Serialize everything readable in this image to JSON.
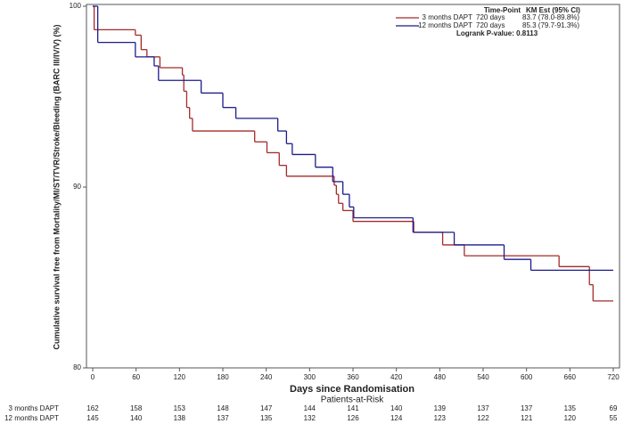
{
  "chart_data": {
    "type": "km",
    "ylabel": "Cumulative survival free from Mortality/MI/ST/TVR/Stroke/Bleeding (BARC III/IV/V) (%)",
    "xlabel": "Days since Randomisation",
    "xlim": [
      0,
      720
    ],
    "xticks": [
      0,
      60,
      120,
      180,
      240,
      300,
      360,
      420,
      480,
      540,
      600,
      660,
      720
    ],
    "ylim": [
      80,
      100
    ],
    "yticks": [
      80,
      90,
      100
    ],
    "legend_header": [
      "Time-Point",
      "KM Est (95% CI)"
    ],
    "annotation": "Logrank P-value: 0.8113",
    "series": [
      {
        "name": "3 months DAPT",
        "color": "#a52a2a",
        "timepoint": "720 days",
        "estimate": "83.7 (78.0-89.8%)",
        "x": [
          0,
          2,
          59,
          67,
          75,
          93,
          124,
          126,
          130,
          134,
          138,
          224,
          241,
          258,
          268,
          334,
          337,
          340,
          346,
          360,
          444,
          484,
          514,
          645,
          687,
          692
        ],
        "values": [
          100,
          98.7,
          98.4,
          97.6,
          97.2,
          96.6,
          96.2,
          95.3,
          94.4,
          93.8,
          93.1,
          92.5,
          91.9,
          91.2,
          90.6,
          90.1,
          89.6,
          89.1,
          88.7,
          88.1,
          87.5,
          86.8,
          86.2,
          85.6,
          84.6,
          83.7
        ]
      },
      {
        "name": "12 months DAPT",
        "color": "#1c1c8c",
        "timepoint": "720 days",
        "estimate": "85.3 (79.7-91.3%)",
        "x": [
          0,
          7,
          59,
          85,
          91,
          150,
          180,
          198,
          256,
          268,
          276,
          308,
          332,
          346,
          355,
          361,
          443,
          500,
          569,
          606
        ],
        "values": [
          100,
          98.0,
          97.2,
          96.7,
          95.9,
          95.2,
          94.4,
          93.8,
          93.1,
          92.4,
          91.8,
          91.1,
          90.3,
          89.6,
          88.9,
          88.3,
          87.5,
          86.8,
          86.0,
          85.4
        ]
      }
    ],
    "risk_table": {
      "title": "Patients-at-Risk",
      "rows": [
        {
          "name": "3 months DAPT",
          "color": "#a52a2a",
          "values": [
            162,
            158,
            153,
            148,
            147,
            144,
            141,
            140,
            139,
            137,
            137,
            135,
            69
          ]
        },
        {
          "name": "12 months DAPT",
          "color": "#1c1c8c",
          "values": [
            145,
            140,
            138,
            137,
            135,
            132,
            126,
            124,
            123,
            122,
            121,
            120,
            55
          ]
        }
      ]
    }
  }
}
